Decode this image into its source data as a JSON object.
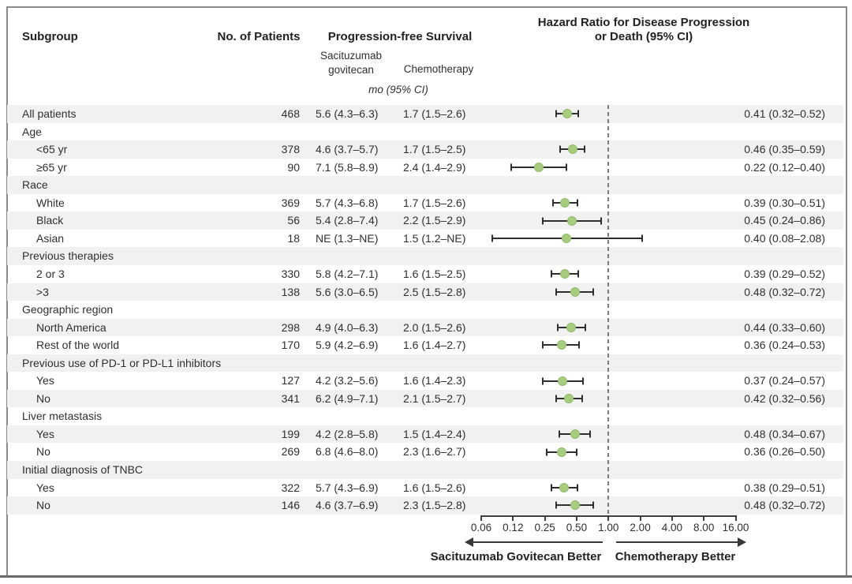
{
  "header": {
    "subgroup": "Subgroup",
    "patients": "No. of Patients",
    "pfs": "Progression-free Survival",
    "hr_line1": "Hazard Ratio for Disease Progression",
    "hr_line2": "or Death (95% CI)",
    "saci_line1": "Sacituzumab",
    "saci_line2": "govitecan",
    "chemo": "Chemotherapy",
    "units": "mo (95% CI)"
  },
  "rows": [
    {
      "label": "All patients",
      "indent": false,
      "n": "468",
      "saci": "5.6 (4.3–6.3)",
      "chemo": "1.7 (1.5–2.6)",
      "hr_text": "0.41 (0.32–0.52)",
      "hr": 0.41,
      "lo": 0.32,
      "hi": 0.52
    },
    {
      "label": "Age",
      "group": true
    },
    {
      "label": "<65 yr",
      "indent": true,
      "n": "378",
      "saci": "4.6 (3.7–5.7)",
      "chemo": "1.7 (1.5–2.5)",
      "hr_text": "0.46 (0.35–0.59)",
      "hr": 0.46,
      "lo": 0.35,
      "hi": 0.59
    },
    {
      "label": "≥65 yr",
      "indent": true,
      "n": "90",
      "saci": "7.1 (5.8–8.9)",
      "chemo": "2.4 (1.4–2.9)",
      "hr_text": "0.22 (0.12–0.40)",
      "hr": 0.22,
      "lo": 0.12,
      "hi": 0.4
    },
    {
      "label": "Race",
      "group": true
    },
    {
      "label": "White",
      "indent": true,
      "n": "369",
      "saci": "5.7 (4.3–6.8)",
      "chemo": "1.7 (1.5–2.6)",
      "hr_text": "0.39 (0.30–0.51)",
      "hr": 0.39,
      "lo": 0.3,
      "hi": 0.51
    },
    {
      "label": "Black",
      "indent": true,
      "n": "56",
      "saci": "5.4 (2.8–7.4)",
      "chemo": "2.2 (1.5–2.9)",
      "hr_text": "0.45 (0.24–0.86)",
      "hr": 0.45,
      "lo": 0.24,
      "hi": 0.86
    },
    {
      "label": "Asian",
      "indent": true,
      "n": "18",
      "saci": "NE (1.3–NE)",
      "chemo": "1.5 (1.2–NE)",
      "hr_text": "0.40 (0.08–2.08)",
      "hr": 0.4,
      "lo": 0.08,
      "hi": 2.08
    },
    {
      "label": "Previous therapies",
      "group": true
    },
    {
      "label": "2 or 3",
      "indent": true,
      "n": "330",
      "saci": "5.8 (4.2–7.1)",
      "chemo": "1.6 (1.5–2.5)",
      "hr_text": "0.39 (0.29–0.52)",
      "hr": 0.39,
      "lo": 0.29,
      "hi": 0.52
    },
    {
      "label": ">3",
      "indent": true,
      "n": "138",
      "saci": "5.6 (3.0–6.5)",
      "chemo": "2.5 (1.5–2.8)",
      "hr_text": "0.48 (0.32–0.72)",
      "hr": 0.48,
      "lo": 0.32,
      "hi": 0.72
    },
    {
      "label": "Geographic region",
      "group": true
    },
    {
      "label": "North America",
      "indent": true,
      "n": "298",
      "saci": "4.9 (4.0–6.3)",
      "chemo": "2.0 (1.5–2.6)",
      "hr_text": "0.44 (0.33–0.60)",
      "hr": 0.44,
      "lo": 0.33,
      "hi": 0.6
    },
    {
      "label": "Rest of the world",
      "indent": true,
      "n": "170",
      "saci": "5.9 (4.2–6.9)",
      "chemo": "1.6 (1.4–2.7)",
      "hr_text": "0.36 (0.24–0.53)",
      "hr": 0.36,
      "lo": 0.24,
      "hi": 0.53
    },
    {
      "label": "Previous use of PD-1 or PD-L1 inhibitors",
      "group": true
    },
    {
      "label": "Yes",
      "indent": true,
      "n": "127",
      "saci": "4.2 (3.2–5.6)",
      "chemo": "1.6 (1.4–2.3)",
      "hr_text": "0.37 (0.24–0.57)",
      "hr": 0.37,
      "lo": 0.24,
      "hi": 0.57
    },
    {
      "label": "No",
      "indent": true,
      "n": "341",
      "saci": "6.2 (4.9–7.1)",
      "chemo": "2.1 (1.5–2.7)",
      "hr_text": "0.42 (0.32–0.56)",
      "hr": 0.42,
      "lo": 0.32,
      "hi": 0.56
    },
    {
      "label": "Liver metastasis",
      "group": true
    },
    {
      "label": "Yes",
      "indent": true,
      "n": "199",
      "saci": "4.2 (2.8–5.8)",
      "chemo": "1.5 (1.4–2.4)",
      "hr_text": "0.48 (0.34–0.67)",
      "hr": 0.48,
      "lo": 0.34,
      "hi": 0.67
    },
    {
      "label": "No",
      "indent": true,
      "n": "269",
      "saci": "6.8 (4.6–8.0)",
      "chemo": "2.3 (1.6–2.7)",
      "hr_text": "0.36 (0.26–0.50)",
      "hr": 0.36,
      "lo": 0.26,
      "hi": 0.5
    },
    {
      "label": "Initial diagnosis of TNBC",
      "group": true
    },
    {
      "label": "Yes",
      "indent": true,
      "n": "322",
      "saci": "5.7 (4.3–6.9)",
      "chemo": "1.6 (1.5–2.6)",
      "hr_text": "0.38 (0.29–0.51)",
      "hr": 0.38,
      "lo": 0.29,
      "hi": 0.51
    },
    {
      "label": "No",
      "indent": true,
      "n": "146",
      "saci": "4.6 (3.7–6.9)",
      "chemo": "2.3 (1.5–2.8)",
      "hr_text": "0.48 (0.32–0.72)",
      "hr": 0.48,
      "lo": 0.32,
      "hi": 0.72
    }
  ],
  "axis": {
    "ticks": [
      "0.06",
      "0.12",
      "0.25",
      "0.50",
      "1.00",
      "2.00",
      "4.00",
      "8.00",
      "16.00"
    ]
  },
  "footer": {
    "left_label": "Sacituzumab Govitecan Better",
    "right_label": "Chemotherapy Better"
  },
  "colors": {
    "marker_fill": "#a7cc80",
    "marker_stroke": "#92ba68",
    "ci_line": "#2e2e2e",
    "row_shade": "#f1f1f2",
    "reference_dash": "#7b7b7b"
  },
  "chart_data": {
    "type": "scatter",
    "subtype": "forest-plot",
    "title": "Hazard Ratio for Disease Progression or Death (95% CI)",
    "x_scale": "log2",
    "xlim": [
      0.0625,
      16
    ],
    "x_ticks": [
      0.06,
      0.12,
      0.25,
      0.5,
      1.0,
      2.0,
      4.0,
      8.0,
      16.0
    ],
    "reference_line": 1.0,
    "legend_left": "Sacituzumab Govitecan Better",
    "legend_right": "Chemotherapy Better",
    "grid": false,
    "points": [
      {
        "subgroup": "All patients",
        "n": 468,
        "sg_pfs_mo": "5.6 (4.3–6.3)",
        "chemo_pfs_mo": "1.7 (1.5–2.6)",
        "hr": 0.41,
        "ci": [
          0.32,
          0.52
        ]
      },
      {
        "subgroup": "Age <65 yr",
        "n": 378,
        "sg_pfs_mo": "4.6 (3.7–5.7)",
        "chemo_pfs_mo": "1.7 (1.5–2.5)",
        "hr": 0.46,
        "ci": [
          0.35,
          0.59
        ]
      },
      {
        "subgroup": "Age ≥65 yr",
        "n": 90,
        "sg_pfs_mo": "7.1 (5.8–8.9)",
        "chemo_pfs_mo": "2.4 (1.4–2.9)",
        "hr": 0.22,
        "ci": [
          0.12,
          0.4
        ]
      },
      {
        "subgroup": "Race White",
        "n": 369,
        "sg_pfs_mo": "5.7 (4.3–6.8)",
        "chemo_pfs_mo": "1.7 (1.5–2.6)",
        "hr": 0.39,
        "ci": [
          0.3,
          0.51
        ]
      },
      {
        "subgroup": "Race Black",
        "n": 56,
        "sg_pfs_mo": "5.4 (2.8–7.4)",
        "chemo_pfs_mo": "2.2 (1.5–2.9)",
        "hr": 0.45,
        "ci": [
          0.24,
          0.86
        ]
      },
      {
        "subgroup": "Race Asian",
        "n": 18,
        "sg_pfs_mo": "NE (1.3–NE)",
        "chemo_pfs_mo": "1.5 (1.2–NE)",
        "hr": 0.4,
        "ci": [
          0.08,
          2.08
        ]
      },
      {
        "subgroup": "Previous therapies 2 or 3",
        "n": 330,
        "sg_pfs_mo": "5.8 (4.2–7.1)",
        "chemo_pfs_mo": "1.6 (1.5–2.5)",
        "hr": 0.39,
        "ci": [
          0.29,
          0.52
        ]
      },
      {
        "subgroup": "Previous therapies >3",
        "n": 138,
        "sg_pfs_mo": "5.6 (3.0–6.5)",
        "chemo_pfs_mo": "2.5 (1.5–2.8)",
        "hr": 0.48,
        "ci": [
          0.32,
          0.72
        ]
      },
      {
        "subgroup": "North America",
        "n": 298,
        "sg_pfs_mo": "4.9 (4.0–6.3)",
        "chemo_pfs_mo": "2.0 (1.5–2.6)",
        "hr": 0.44,
        "ci": [
          0.33,
          0.6
        ]
      },
      {
        "subgroup": "Rest of the world",
        "n": 170,
        "sg_pfs_mo": "5.9 (4.2–6.9)",
        "chemo_pfs_mo": "1.6 (1.4–2.7)",
        "hr": 0.36,
        "ci": [
          0.24,
          0.53
        ]
      },
      {
        "subgroup": "Previous PD-1/PD-L1 inhibitors Yes",
        "n": 127,
        "sg_pfs_mo": "4.2 (3.2–5.6)",
        "chemo_pfs_mo": "1.6 (1.4–2.3)",
        "hr": 0.37,
        "ci": [
          0.24,
          0.57
        ]
      },
      {
        "subgroup": "Previous PD-1/PD-L1 inhibitors No",
        "n": 341,
        "sg_pfs_mo": "6.2 (4.9–7.1)",
        "chemo_pfs_mo": "2.1 (1.5–2.7)",
        "hr": 0.42,
        "ci": [
          0.32,
          0.56
        ]
      },
      {
        "subgroup": "Liver metastasis Yes",
        "n": 199,
        "sg_pfs_mo": "4.2 (2.8–5.8)",
        "chemo_pfs_mo": "1.5 (1.4–2.4)",
        "hr": 0.48,
        "ci": [
          0.34,
          0.67
        ]
      },
      {
        "subgroup": "Liver metastasis No",
        "n": 269,
        "sg_pfs_mo": "6.8 (4.6–8.0)",
        "chemo_pfs_mo": "2.3 (1.6–2.7)",
        "hr": 0.36,
        "ci": [
          0.26,
          0.5
        ]
      },
      {
        "subgroup": "Initial diagnosis of TNBC Yes",
        "n": 322,
        "sg_pfs_mo": "5.7 (4.3–6.9)",
        "chemo_pfs_mo": "1.6 (1.5–2.6)",
        "hr": 0.38,
        "ci": [
          0.29,
          0.51
        ]
      },
      {
        "subgroup": "Initial diagnosis of TNBC No",
        "n": 146,
        "sg_pfs_mo": "4.6 (3.7–6.9)",
        "chemo_pfs_mo": "2.3 (1.5–2.8)",
        "hr": 0.48,
        "ci": [
          0.32,
          0.72
        ]
      }
    ]
  }
}
